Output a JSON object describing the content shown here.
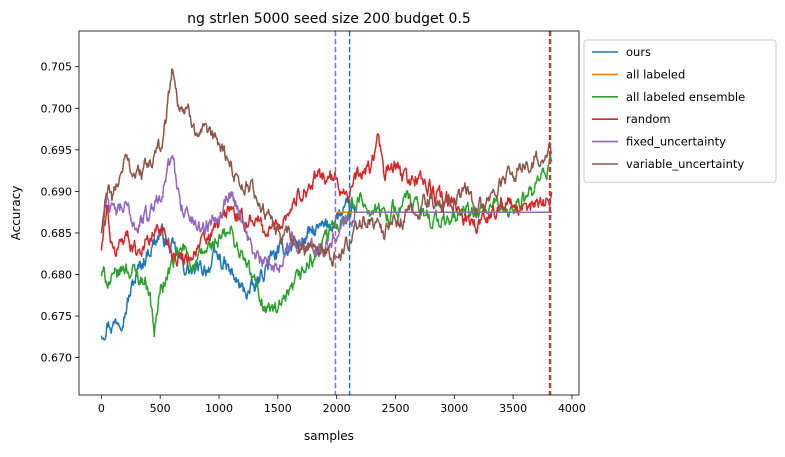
{
  "chart_data": {
    "type": "line",
    "title": "ng strlen 5000 seed size 200 budget 0.5",
    "xlabel": "samples",
    "ylabel": "Accuracy",
    "xlim": [
      -190,
      4060
    ],
    "ylim": [
      0.6655,
      0.7093
    ],
    "x_ticks": [
      0,
      500,
      1000,
      1500,
      2000,
      2500,
      3000,
      3500,
      4000
    ],
    "y_ticks": [
      0.67,
      0.675,
      0.68,
      0.685,
      0.69,
      0.695,
      0.7,
      0.705
    ],
    "x_tick_labels": [
      "0",
      "500",
      "1000",
      "1500",
      "2000",
      "2500",
      "3000",
      "3500",
      "4000"
    ],
    "y_tick_labels": [
      "0.670",
      "0.675",
      "0.680",
      "0.685",
      "0.690",
      "0.695",
      "0.700",
      "0.705"
    ],
    "grid": false,
    "legend": "outside-right",
    "series": [
      {
        "name": "ours",
        "color": "#1f77b4",
        "x": [
          0,
          50,
          100,
          200,
          300,
          400,
          500,
          600,
          700,
          800,
          900,
          1000,
          1100,
          1200,
          1300,
          1400,
          1500,
          1600,
          1700,
          1800,
          1900,
          1950,
          2000,
          2100,
          3830
        ],
        "y": [
          0.673,
          0.6745,
          0.674,
          0.676,
          0.68,
          0.683,
          0.685,
          0.683,
          0.681,
          0.68,
          0.681,
          0.682,
          0.68,
          0.678,
          0.678,
          0.681,
          0.6825,
          0.6835,
          0.684,
          0.685,
          0.6855,
          0.686,
          0.687,
          0.6875,
          0.6875
        ]
      },
      {
        "name": "all labeled",
        "color": "#ff7f0e",
        "x": [
          2000,
          3830
        ],
        "y": [
          0.6875,
          0.6875
        ]
      },
      {
        "name": "all labeled ensemble",
        "color": "#2ca02c",
        "x": [
          0,
          100,
          200,
          300,
          400,
          450,
          500,
          600,
          700,
          800,
          900,
          1000,
          1100,
          1200,
          1300,
          1400,
          1500,
          1600,
          1700,
          1800,
          1900,
          2000,
          2100,
          2200,
          2300,
          2400,
          2500,
          2600,
          2700,
          2800,
          2900,
          3000,
          3100,
          3200,
          3300,
          3400,
          3500,
          3600,
          3700,
          3830
        ],
        "y": [
          0.68,
          0.679,
          0.681,
          0.68,
          0.679,
          0.673,
          0.678,
          0.681,
          0.683,
          0.681,
          0.683,
          0.684,
          0.685,
          0.682,
          0.679,
          0.676,
          0.6755,
          0.677,
          0.68,
          0.682,
          0.684,
          0.686,
          0.688,
          0.689,
          0.688,
          0.687,
          0.688,
          0.689,
          0.6875,
          0.687,
          0.686,
          0.687,
          0.6875,
          0.687,
          0.688,
          0.6875,
          0.688,
          0.689,
          0.69,
          0.6935
        ]
      },
      {
        "name": "random",
        "color": "#d62728",
        "x": [
          0,
          50,
          100,
          200,
          300,
          400,
          500,
          600,
          700,
          800,
          900,
          1000,
          1100,
          1200,
          1300,
          1400,
          1500,
          1600,
          1700,
          1800,
          1900,
          2000,
          2100,
          2200,
          2300,
          2350,
          2400,
          2500,
          2600,
          2700,
          2800,
          2900,
          3000,
          3100,
          3200,
          3300,
          3400,
          3500,
          3600,
          3700,
          3830
        ],
        "y": [
          0.683,
          0.688,
          0.682,
          0.685,
          0.683,
          0.684,
          0.686,
          0.683,
          0.682,
          0.683,
          0.684,
          0.686,
          0.688,
          0.686,
          0.687,
          0.685,
          0.686,
          0.688,
          0.69,
          0.691,
          0.692,
          0.691,
          0.69,
          0.692,
          0.693,
          0.6965,
          0.692,
          0.693,
          0.691,
          0.692,
          0.69,
          0.689,
          0.688,
          0.687,
          0.686,
          0.687,
          0.689,
          0.688,
          0.687,
          0.689,
          0.689
        ]
      },
      {
        "name": "fixed_uncertainty",
        "color": "#9467bd",
        "x": [
          0,
          50,
          100,
          200,
          300,
          400,
          500,
          600,
          650,
          700,
          800,
          900,
          1000,
          1100,
          1200,
          1300,
          1400,
          1500,
          1600,
          1700,
          1800,
          1900,
          1990,
          2100,
          3830
        ],
        "y": [
          0.685,
          0.69,
          0.687,
          0.688,
          0.686,
          0.687,
          0.69,
          0.694,
          0.69,
          0.688,
          0.686,
          0.686,
          0.688,
          0.69,
          0.687,
          0.682,
          0.681,
          0.681,
          0.684,
          0.684,
          0.683,
          0.684,
          0.685,
          0.6875,
          0.6875
        ]
      },
      {
        "name": "variable_uncertainty",
        "color": "#8c564b",
        "x": [
          0,
          50,
          100,
          200,
          300,
          400,
          500,
          550,
          600,
          650,
          700,
          800,
          900,
          1000,
          1100,
          1200,
          1300,
          1400,
          1500,
          1600,
          1700,
          1800,
          1900,
          2000,
          2100,
          2200,
          2300,
          2400,
          2500,
          2600,
          2700,
          2800,
          2900,
          3000,
          3100,
          3200,
          3300,
          3400,
          3500,
          3600,
          3700,
          3830
        ],
        "y": [
          0.685,
          0.69,
          0.689,
          0.694,
          0.692,
          0.693,
          0.695,
          0.699,
          0.705,
          0.701,
          0.7,
          0.698,
          0.696,
          0.696,
          0.693,
          0.691,
          0.69,
          0.687,
          0.685,
          0.684,
          0.683,
          0.684,
          0.683,
          0.682,
          0.684,
          0.686,
          0.687,
          0.685,
          0.686,
          0.687,
          0.688,
          0.689,
          0.688,
          0.689,
          0.69,
          0.688,
          0.689,
          0.691,
          0.692,
          0.693,
          0.694,
          0.6955
        ]
      }
    ],
    "vertical_lines": [
      {
        "x": 1990,
        "color": "#9467bd",
        "style": "dashed"
      },
      {
        "x": 2110,
        "color": "#1f77b4",
        "style": "dashed"
      },
      {
        "x": 3810,
        "color": "#d62728",
        "style": "dashed"
      },
      {
        "x": 3818,
        "color": "#8c564b",
        "style": "dashed"
      }
    ]
  }
}
